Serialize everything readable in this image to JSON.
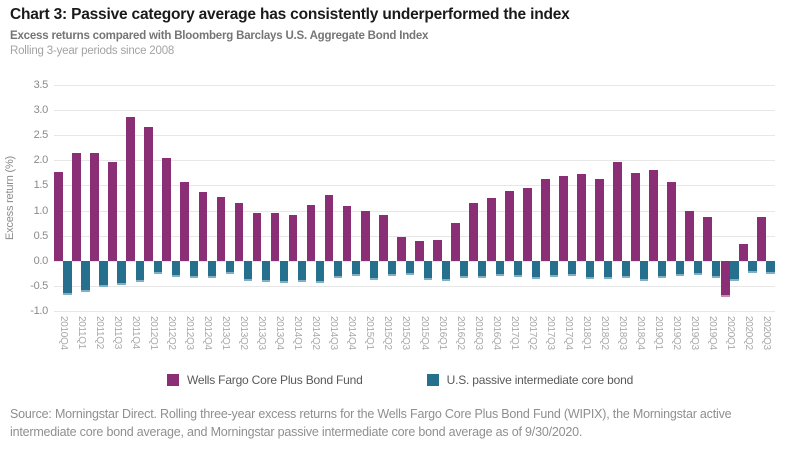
{
  "header": {
    "title": "Chart 3: Passive category average has consistently underperformed the index",
    "subtitle": "Excess returns compared with Bloomberg Barclays U.S. Aggregate Bond Index",
    "period_note": "Rolling 3-year periods since 2008"
  },
  "chart_data": {
    "type": "bar",
    "title": "Chart 3: Passive category average has consistently underperformed the index",
    "xlabel": "",
    "ylabel": "Excess return (%)",
    "ylim": [
      -1.0,
      3.5
    ],
    "ytick_step": 0.5,
    "grid": true,
    "legend_position": "bottom",
    "categories": [
      "2010Q4",
      "2011Q1",
      "2011Q2",
      "2011Q3",
      "2011Q4",
      "2012Q1",
      "2012Q2",
      "2012Q3",
      "2012Q4",
      "2013Q1",
      "2013Q2",
      "2013Q3",
      "2013Q4",
      "2014Q1",
      "2014Q2",
      "2014Q3",
      "2014Q4",
      "2015Q1",
      "2015Q2",
      "2015Q3",
      "2015Q4",
      "2016Q1",
      "2016Q2",
      "2016Q3",
      "2016Q4",
      "2017Q1",
      "2017Q2",
      "2017Q3",
      "2017Q4",
      "2018Q1",
      "2018Q2",
      "2018Q3",
      "2018Q4",
      "2019Q1",
      "2019Q2",
      "2019Q3",
      "2019Q4",
      "2020Q1",
      "2020Q2",
      "2020Q3"
    ],
    "series": [
      {
        "name": "Wells Fargo Core Plus Bond Fund",
        "color": "#8a2e76",
        "edge_color": "#c08fb2",
        "values": [
          1.76,
          2.15,
          2.15,
          1.97,
          2.87,
          2.66,
          2.05,
          1.56,
          1.37,
          1.28,
          1.15,
          0.95,
          0.95,
          0.92,
          1.11,
          1.31,
          1.09,
          0.99,
          0.91,
          0.48,
          0.4,
          0.41,
          0.75,
          1.16,
          1.26,
          1.4,
          1.46,
          1.63,
          1.69,
          1.72,
          1.62,
          1.97,
          1.75,
          1.81,
          1.57,
          0.99,
          0.88,
          -0.72,
          0.33,
          0.88
        ]
      },
      {
        "name": "U.S. passive intermediate core bond",
        "color": "#26708e",
        "edge_color": "#7fb0c6",
        "values": [
          -0.68,
          -0.63,
          -0.52,
          -0.48,
          -0.42,
          -0.26,
          -0.32,
          -0.35,
          -0.35,
          -0.26,
          -0.4,
          -0.42,
          -0.45,
          -0.42,
          -0.45,
          -0.35,
          -0.3,
          -0.38,
          -0.3,
          -0.28,
          -0.38,
          -0.4,
          -0.34,
          -0.34,
          -0.3,
          -0.32,
          -0.37,
          -0.32,
          -0.3,
          -0.37,
          -0.37,
          -0.34,
          -0.4,
          -0.35,
          -0.3,
          -0.28,
          -0.35,
          -0.4,
          -0.25,
          -0.27
        ]
      }
    ]
  },
  "footer": {
    "source_text": "Source: Morningstar Direct. Rolling three-year excess returns for the Wells Fargo Core Plus Bond Fund (WIPIX), the Morningstar active intermediate core bond average, and Morningstar passive intermediate core bond average as of 9/30/2020."
  }
}
